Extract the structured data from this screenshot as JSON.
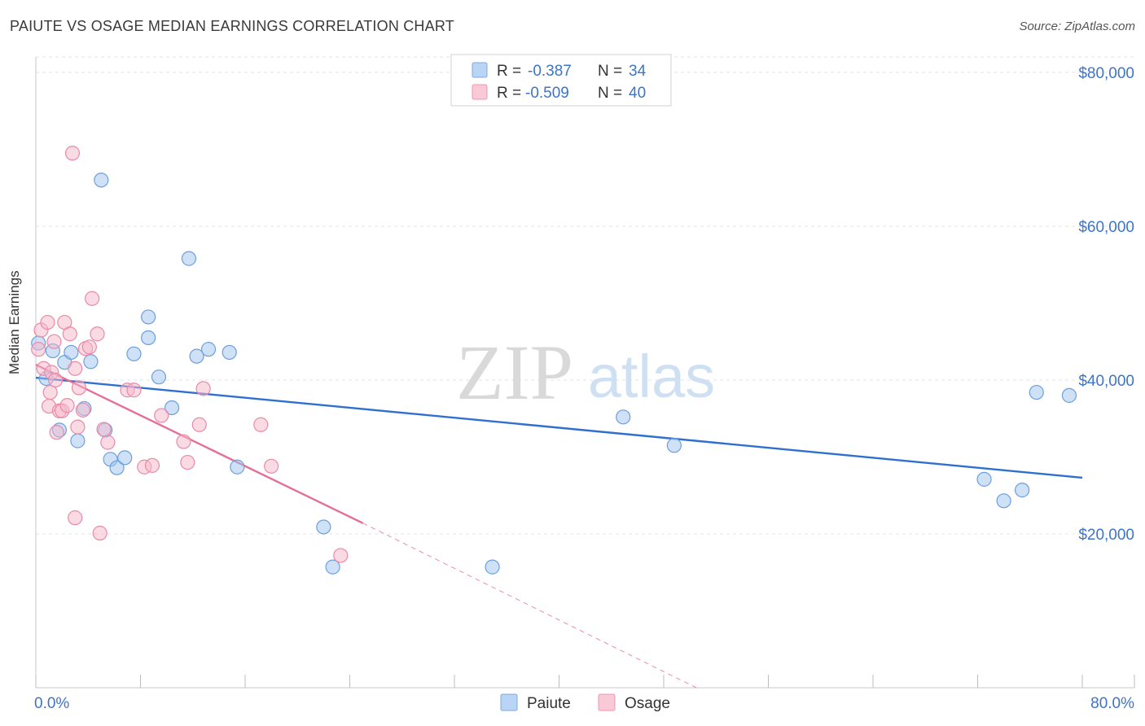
{
  "title": "PAIUTE VS OSAGE MEDIAN EARNINGS CORRELATION CHART",
  "source": "Source: ZipAtlas.com",
  "watermark": {
    "zip": "ZIP",
    "atlas": "atlas"
  },
  "colors": {
    "blue": "#9ec3f0",
    "blue_stroke": "#6d9fdc",
    "blue_line": "#2f6fd0",
    "pink": "#f6b7ca",
    "pink_stroke": "#ea8aa9",
    "pink_line": "#e46f97",
    "tick_text": "#3d74c9",
    "grid": "#e3e3e3"
  },
  "legend": {
    "rows": [
      {
        "r_label": "R =",
        "r_value": "-0.387",
        "n_label": "N =",
        "n_value": "34"
      },
      {
        "r_label": "R =",
        "r_value": "-0.509",
        "n_label": "N =",
        "n_value": "40"
      }
    ]
  },
  "chart_data": {
    "type": "scatter",
    "title": "PAIUTE VS OSAGE MEDIAN EARNINGS CORRELATION CHART",
    "xlabel": "",
    "ylabel": "Median Earnings",
    "xlim": [
      0,
      80
    ],
    "ylim": [
      0,
      82000
    ],
    "x_tick_labels": [
      "0.0%",
      "80.0%"
    ],
    "y_ticks": [
      20000,
      40000,
      60000,
      80000
    ],
    "y_tick_labels": [
      "$20,000",
      "$40,000",
      "$60,000",
      "$80,000"
    ],
    "legend_position": "bottom-center",
    "series": [
      {
        "name": "Paiute",
        "color": "blue",
        "points": [
          [
            0.2,
            44800
          ],
          [
            0.8,
            40200
          ],
          [
            1.3,
            43800
          ],
          [
            1.8,
            33500
          ],
          [
            2.2,
            42300
          ],
          [
            2.7,
            43600
          ],
          [
            3.2,
            32100
          ],
          [
            3.7,
            36300
          ],
          [
            4.2,
            42400
          ],
          [
            5.0,
            66000
          ],
          [
            5.3,
            33500
          ],
          [
            5.7,
            29700
          ],
          [
            6.2,
            28600
          ],
          [
            6.8,
            29900
          ],
          [
            7.5,
            43400
          ],
          [
            8.6,
            48200
          ],
          [
            8.6,
            45500
          ],
          [
            9.4,
            40400
          ],
          [
            10.4,
            36400
          ],
          [
            11.7,
            55800
          ],
          [
            12.3,
            43100
          ],
          [
            13.2,
            44000
          ],
          [
            14.8,
            43600
          ],
          [
            15.4,
            28700
          ],
          [
            22.0,
            20900
          ],
          [
            22.7,
            15700
          ],
          [
            34.9,
            15700
          ],
          [
            44.9,
            35200
          ],
          [
            48.8,
            31500
          ],
          [
            72.5,
            27100
          ],
          [
            74.0,
            24300
          ],
          [
            75.4,
            25700
          ],
          [
            76.5,
            38400
          ],
          [
            79.0,
            38000
          ]
        ]
      },
      {
        "name": "Osage",
        "color": "pink",
        "points": [
          [
            0.2,
            44000
          ],
          [
            0.4,
            46500
          ],
          [
            0.6,
            41500
          ],
          [
            0.9,
            47500
          ],
          [
            1.0,
            36600
          ],
          [
            1.1,
            38400
          ],
          [
            1.2,
            41000
          ],
          [
            1.4,
            45000
          ],
          [
            1.5,
            40000
          ],
          [
            1.6,
            33200
          ],
          [
            1.8,
            36000
          ],
          [
            2.0,
            36000
          ],
          [
            2.2,
            47500
          ],
          [
            2.4,
            36700
          ],
          [
            2.6,
            46000
          ],
          [
            2.8,
            69500
          ],
          [
            3.0,
            41500
          ],
          [
            3.0,
            22100
          ],
          [
            3.2,
            33900
          ],
          [
            3.3,
            39000
          ],
          [
            3.6,
            36100
          ],
          [
            3.8,
            44100
          ],
          [
            4.1,
            44300
          ],
          [
            4.3,
            50600
          ],
          [
            4.7,
            46000
          ],
          [
            4.9,
            20100
          ],
          [
            5.2,
            33600
          ],
          [
            5.5,
            31900
          ],
          [
            7.0,
            38700
          ],
          [
            7.5,
            38700
          ],
          [
            8.3,
            28700
          ],
          [
            8.9,
            28900
          ],
          [
            9.6,
            35400
          ],
          [
            11.3,
            32000
          ],
          [
            11.6,
            29300
          ],
          [
            12.5,
            34200
          ],
          [
            12.8,
            38900
          ],
          [
            17.2,
            34200
          ],
          [
            18.0,
            28800
          ],
          [
            23.3,
            17200
          ]
        ]
      }
    ],
    "trendlines": [
      {
        "series": "Paiute",
        "x": [
          0.0,
          80.0
        ],
        "y": [
          40300,
          27300
        ],
        "style": "solid"
      },
      {
        "series": "Osage",
        "x": [
          0.0,
          25.0
        ],
        "y": [
          42000,
          21400
        ],
        "style": "solid"
      },
      {
        "series": "Osage",
        "x": [
          25.0,
          50.5
        ],
        "y": [
          21400,
          0
        ],
        "style": "dashed"
      }
    ]
  },
  "bottom_legend": [
    {
      "label": "Paiute",
      "color": "blue"
    },
    {
      "label": "Osage",
      "color": "pink"
    }
  ]
}
